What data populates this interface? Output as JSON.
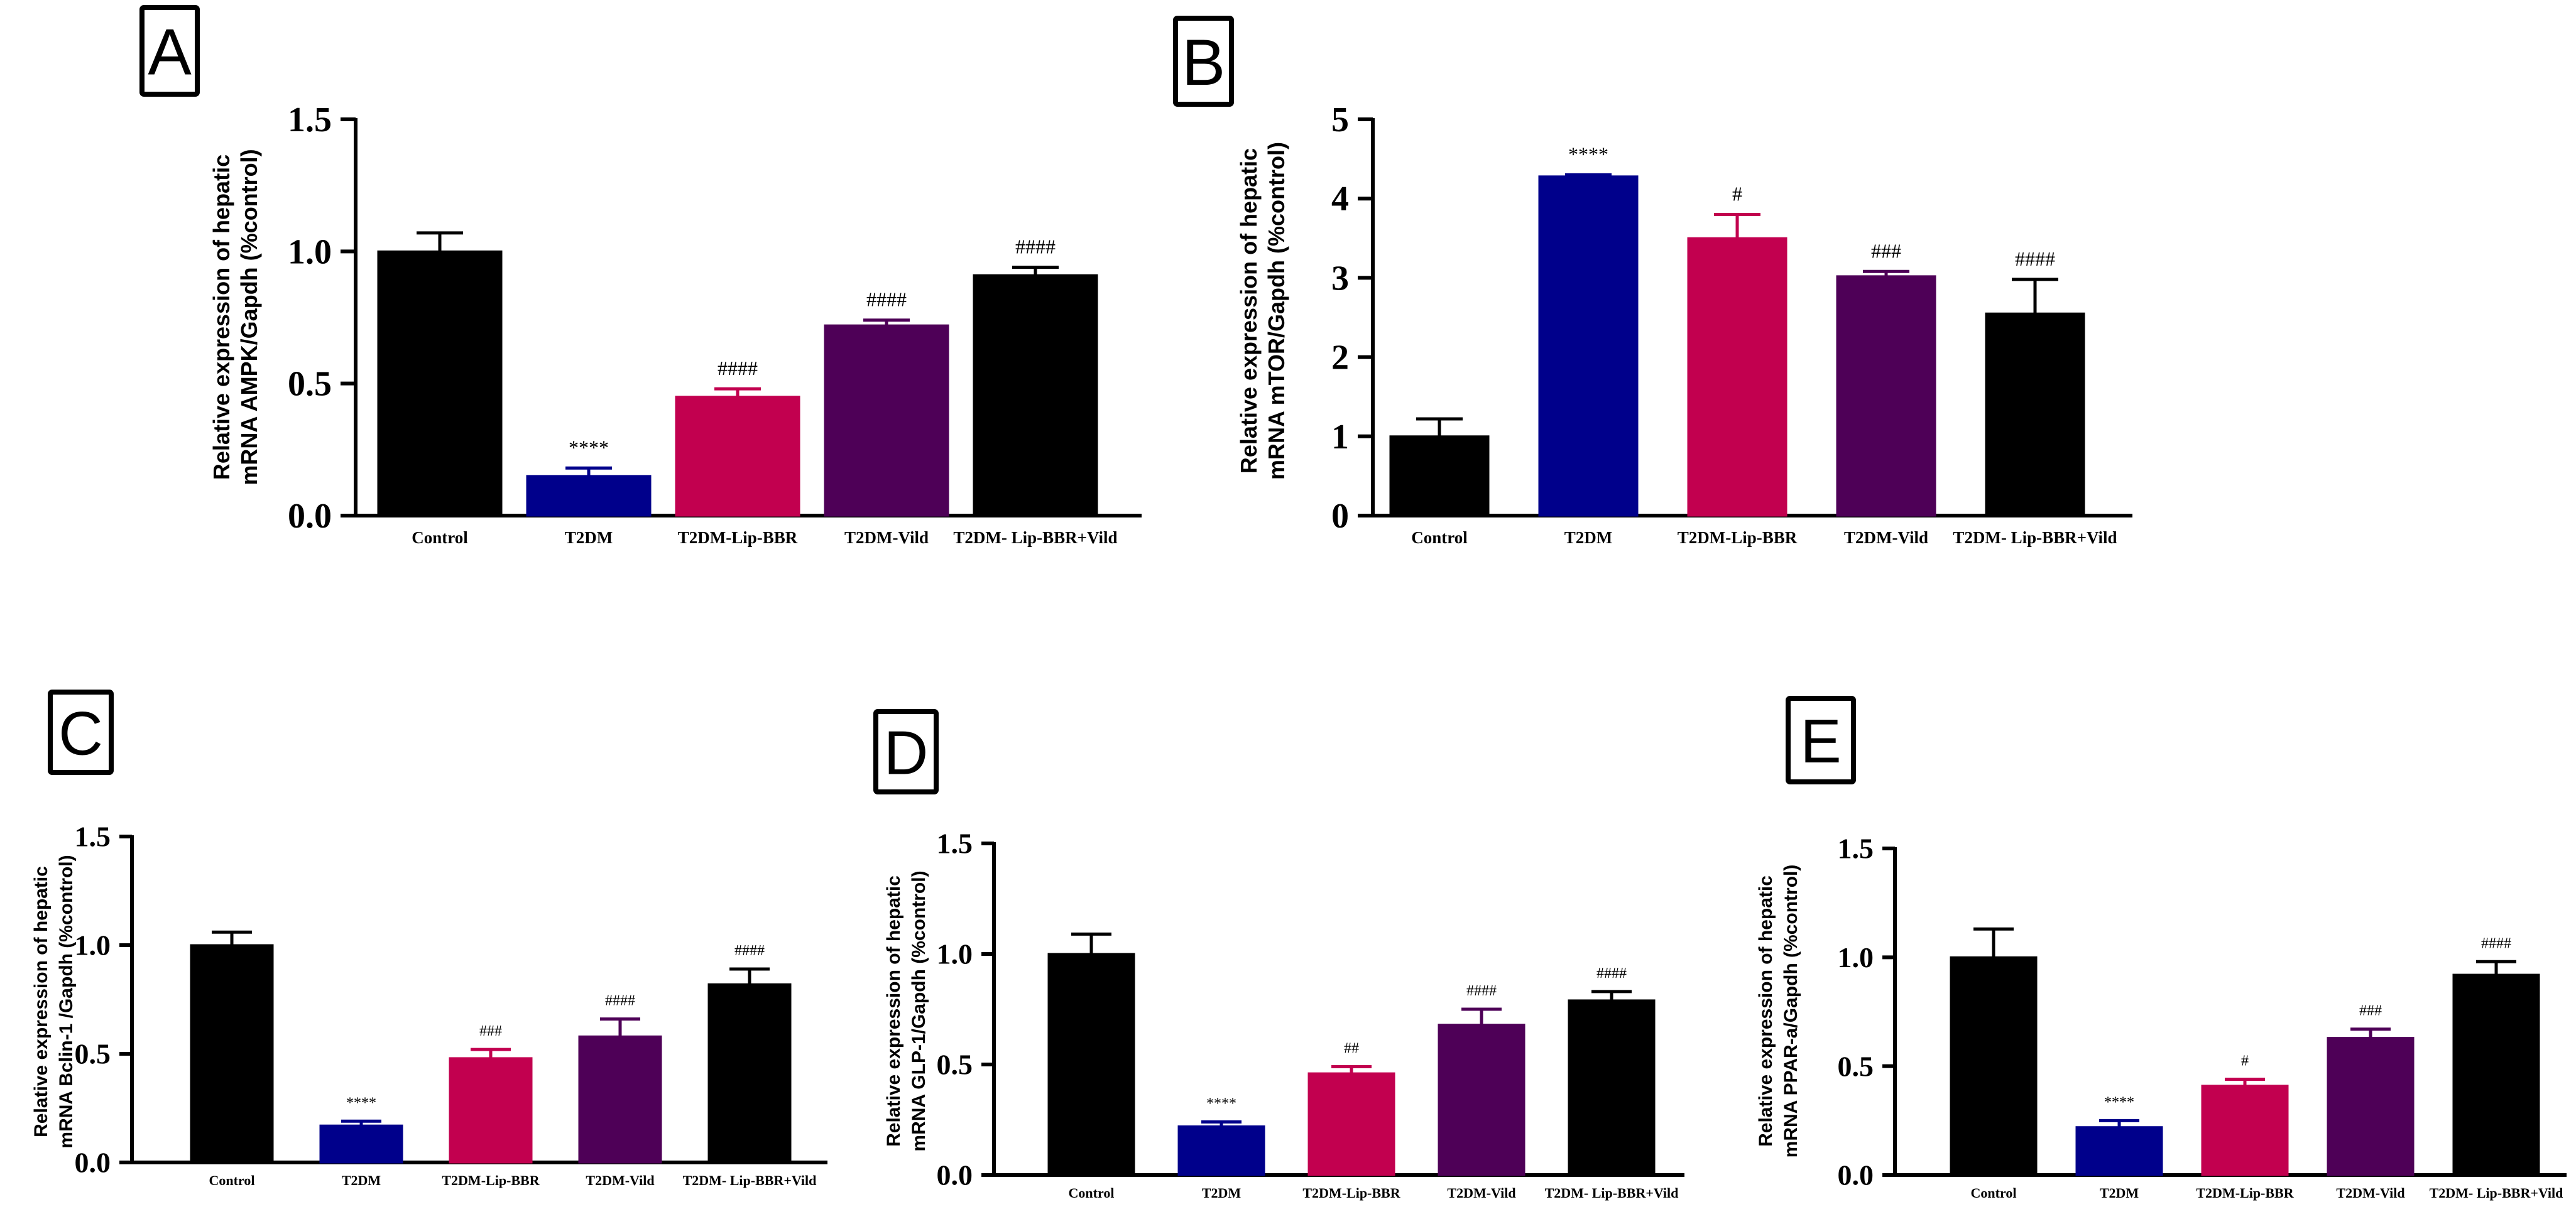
{
  "colors": {
    "control": "#000000",
    "t2dm": "#00008b",
    "lip_bbr": "#c2004f",
    "vild": "#4e0057",
    "combo": "#000000"
  },
  "chart_data": [
    {
      "panel": "A",
      "type": "bar",
      "ylabel_line1": "Relative expression of hepatic",
      "ylabel_line2": "mRNA AMPK/Gapdh (%control)",
      "categories": [
        "Control",
        "T2DM",
        "T2DM-Lip-BBR",
        "T2DM-Vild",
        "T2DM- Lip-BBR+Vild"
      ],
      "values": [
        1.0,
        0.15,
        0.45,
        0.72,
        0.91
      ],
      "errors": [
        0.07,
        0.03,
        0.03,
        0.02,
        0.03
      ],
      "annotations": [
        "",
        "****",
        "####",
        "####",
        "####"
      ],
      "ylim": [
        0,
        1.5
      ],
      "yticks": [
        "0.0",
        "0.5",
        "1.0",
        "1.5"
      ]
    },
    {
      "panel": "B",
      "type": "bar",
      "ylabel_line1": "Relative expression of hepatic",
      "ylabel_line2": "mRNA mTOR/Gapdh (%control)",
      "categories": [
        "Control",
        "T2DM",
        "T2DM-Lip-BBR",
        "T2DM-Vild",
        "T2DM- Lip-BBR+Vild"
      ],
      "values": [
        1.0,
        4.28,
        3.5,
        3.02,
        2.55
      ],
      "errors": [
        0.22,
        0.02,
        0.3,
        0.06,
        0.43
      ],
      "annotations": [
        "",
        "****",
        "#",
        "###",
        "####"
      ],
      "ylim": [
        0,
        5
      ],
      "yticks": [
        "0",
        "1",
        "2",
        "3",
        "4",
        "5"
      ]
    },
    {
      "panel": "C",
      "type": "bar",
      "ylabel_line1": "Relative expression of hepatic",
      "ylabel_line2": "mRNA Bclin-1 /Gapdh (%control)",
      "categories": [
        "Control",
        "T2DM",
        "T2DM-Lip-BBR",
        "T2DM-Vild",
        "T2DM- Lip-BBR+Vild"
      ],
      "values": [
        1.0,
        0.17,
        0.48,
        0.58,
        0.82
      ],
      "errors": [
        0.06,
        0.02,
        0.04,
        0.08,
        0.07
      ],
      "annotations": [
        "",
        "****",
        "###",
        "####",
        "####"
      ],
      "ylim": [
        0,
        1.5
      ],
      "yticks": [
        "0.0",
        "0.5",
        "1.0",
        "1.5"
      ]
    },
    {
      "panel": "D",
      "type": "bar",
      "ylabel_line1": "Relative expression of hepatic",
      "ylabel_line2": "mRNA GLP-1/Gapdh (%control)",
      "categories": [
        "Control",
        "T2DM",
        "T2DM-Lip-BBR",
        "T2DM-Vild",
        "T2DM- Lip-BBR+Vild"
      ],
      "values": [
        1.0,
        0.22,
        0.46,
        0.68,
        0.79
      ],
      "errors": [
        0.09,
        0.02,
        0.03,
        0.07,
        0.04
      ],
      "annotations": [
        "",
        "****",
        "##",
        "####",
        "####"
      ],
      "ylim": [
        0,
        1.5
      ],
      "yticks": [
        "0.0",
        "0.5",
        "1.0",
        "1.5"
      ]
    },
    {
      "panel": "E",
      "type": "bar",
      "ylabel_line1": "Relative expression of hepatic",
      "ylabel_line2": "mRNA PPAR-a/Gapdh (%control)",
      "categories": [
        "Control",
        "T2DM",
        "T2DM-Lip-BBR",
        "T2DM-Vild",
        "T2DM- Lip-BBR+Vild"
      ],
      "values": [
        1.0,
        0.22,
        0.41,
        0.63,
        0.92
      ],
      "errors": [
        0.13,
        0.03,
        0.03,
        0.04,
        0.06
      ],
      "annotations": [
        "",
        "****",
        "#",
        "###",
        "####"
      ],
      "ylim": [
        0,
        1.5
      ],
      "yticks": [
        "0.0",
        "0.5",
        "1.0",
        "1.5"
      ]
    }
  ]
}
